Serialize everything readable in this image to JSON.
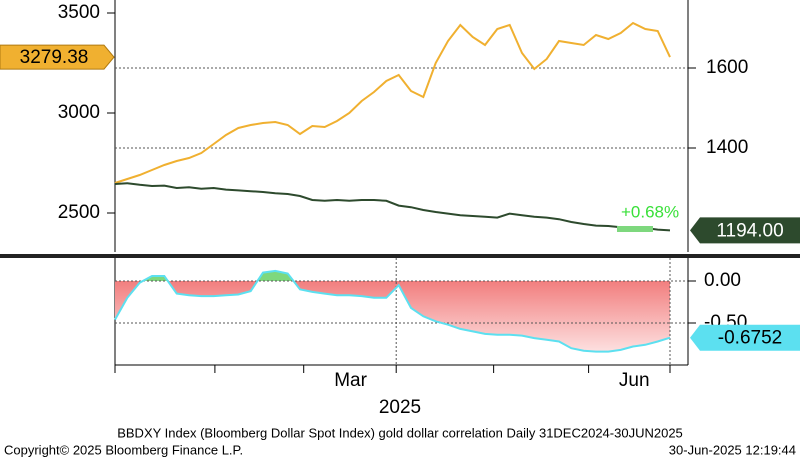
{
  "chart_data": [
    {
      "type": "line",
      "ylim": [
        2305,
        3565
      ],
      "yticks": [
        2500,
        3000,
        3500
      ],
      "y2lim": [
        1140,
        1770
      ],
      "y2ticks": [
        1400,
        1600
      ],
      "xlim": [
        0,
        45
      ],
      "annotation": "+0.68%",
      "series": [
        {
          "name": "gold",
          "color": "#f0b030",
          "axis": "y",
          "values": [
            2650,
            2670,
            2690,
            2715,
            2740,
            2760,
            2775,
            2800,
            2845,
            2890,
            2925,
            2940,
            2950,
            2955,
            2940,
            2895,
            2935,
            2930,
            2960,
            3000,
            3060,
            3105,
            3160,
            3190,
            3110,
            3080,
            3250,
            3360,
            3440,
            3380,
            3340,
            3420,
            3440,
            3300,
            3220,
            3270,
            3360,
            3350,
            3340,
            3390,
            3370,
            3400,
            3450,
            3420,
            3410,
            3279.38
          ]
        },
        {
          "name": "dollar",
          "color": "#2d4a2d",
          "axis": "y2",
          "values": [
            1310,
            1312,
            1308,
            1305,
            1306,
            1300,
            1302,
            1298,
            1300,
            1296,
            1294,
            1292,
            1290,
            1287,
            1285,
            1280,
            1270,
            1268,
            1270,
            1268,
            1270,
            1270,
            1268,
            1256,
            1252,
            1245,
            1240,
            1236,
            1232,
            1230,
            1228,
            1226,
            1236,
            1232,
            1228,
            1226,
            1222,
            1215,
            1210,
            1206,
            1205,
            1202,
            1200,
            1200,
            1196,
            1194
          ],
          "last_label": "1194.00"
        }
      ]
    },
    {
      "type": "area",
      "ylim": [
        -1.0,
        0.274
      ],
      "yticks": [
        {
          "value": 0,
          "label": "0.00"
        },
        {
          "value": -0.5,
          "label": "-0.50"
        }
      ],
      "xlim": [
        0,
        45
      ],
      "xticks": [
        0,
        8.1,
        15.3,
        22.8,
        30.7,
        38.4,
        45
      ],
      "xgrid": [
        22.8,
        45
      ],
      "xtick_labels": [
        {
          "value": 19.1,
          "label": "Mar"
        },
        {
          "value": 42.1,
          "label": "Jun"
        }
      ],
      "xlabel": "2025",
      "series": [
        {
          "name": "correlation",
          "color": "#5ce0f0",
          "values": [
            -0.46,
            -0.2,
            -0.02,
            0.06,
            0.06,
            -0.15,
            -0.17,
            -0.18,
            -0.18,
            -0.17,
            -0.16,
            -0.12,
            0.1,
            0.12,
            0.09,
            -0.1,
            -0.13,
            -0.15,
            -0.17,
            -0.17,
            -0.18,
            -0.2,
            -0.2,
            -0.05,
            -0.32,
            -0.42,
            -0.48,
            -0.52,
            -0.57,
            -0.6,
            -0.63,
            -0.64,
            -0.64,
            -0.65,
            -0.68,
            -0.7,
            -0.72,
            -0.8,
            -0.83,
            -0.84,
            -0.84,
            -0.82,
            -0.78,
            -0.76,
            -0.72,
            -0.6752
          ]
        }
      ]
    }
  ],
  "footer": {
    "source": "BBDXY Index (Bloomberg Dollar Spot Index) gold dollar correlation  Daily 31DEC2024-30JUN2025",
    "copyright": "Copyright© 2025 Bloomberg Finance L.P.",
    "timestamp": "30-Jun-2025 12:19:44"
  }
}
